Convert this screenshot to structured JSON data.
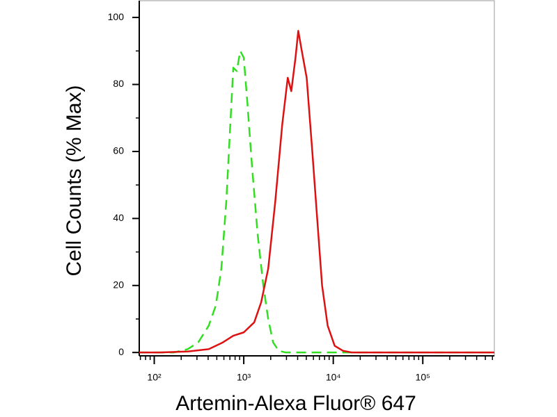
{
  "chart_data": {
    "type": "line",
    "xlabel": "Artemin-Alexa Fluor® 647",
    "ylabel": "Cell Counts (% Max)",
    "xscale": "log",
    "xlim": [
      68,
      630000
    ],
    "ylim": [
      -1,
      105
    ],
    "xticks": [
      {
        "value": 100,
        "label": "10²"
      },
      {
        "value": 1000,
        "label": "10³"
      },
      {
        "value": 10000,
        "label": "10⁴"
      },
      {
        "value": 100000,
        "label": "10⁵"
      }
    ],
    "xminorticks": [
      70,
      80,
      90,
      200,
      300,
      400,
      500,
      600,
      700,
      800,
      900,
      2000,
      3000,
      4000,
      5000,
      6000,
      7000,
      8000,
      9000,
      20000,
      30000,
      40000,
      50000,
      60000,
      70000,
      80000,
      90000,
      200000,
      300000,
      400000,
      500000,
      600000
    ],
    "yticks": [
      0,
      20,
      40,
      60,
      80,
      100
    ],
    "yminorticks": [
      10,
      30,
      50,
      70,
      90
    ],
    "series": [
      {
        "color": "#33dd22",
        "dashed": true,
        "x": [
          68,
          165,
          237,
          310,
          406,
          487,
          562,
          638,
          698,
          764,
          835,
          914,
          1000,
          1094,
          1241,
          1433,
          1654,
          1875,
          2128,
          2460,
          2943,
          630000
        ],
        "values": [
          0,
          0,
          1,
          3,
          8,
          14,
          25,
          45,
          65,
          85,
          84,
          90,
          88,
          75,
          55,
          35,
          20,
          10,
          3,
          0.5,
          0,
          0
        ]
      },
      {
        "color": "#dd1111",
        "dashed": false,
        "x": [
          68,
          115,
          237,
          406,
          583,
          764,
          1000,
          1309,
          1565,
          1875,
          2248,
          2690,
          3100,
          3397,
          3785,
          4064,
          4450,
          5046,
          5830,
          6610,
          7500,
          8660,
          10370,
          12860,
          16220,
          630000
        ],
        "values": [
          0,
          0,
          0.3,
          1,
          3,
          5,
          6,
          9,
          15,
          25,
          45,
          68,
          82,
          78,
          88,
          96,
          90,
          82,
          60,
          40,
          20,
          8,
          2,
          0.5,
          0,
          0
        ]
      }
    ]
  }
}
